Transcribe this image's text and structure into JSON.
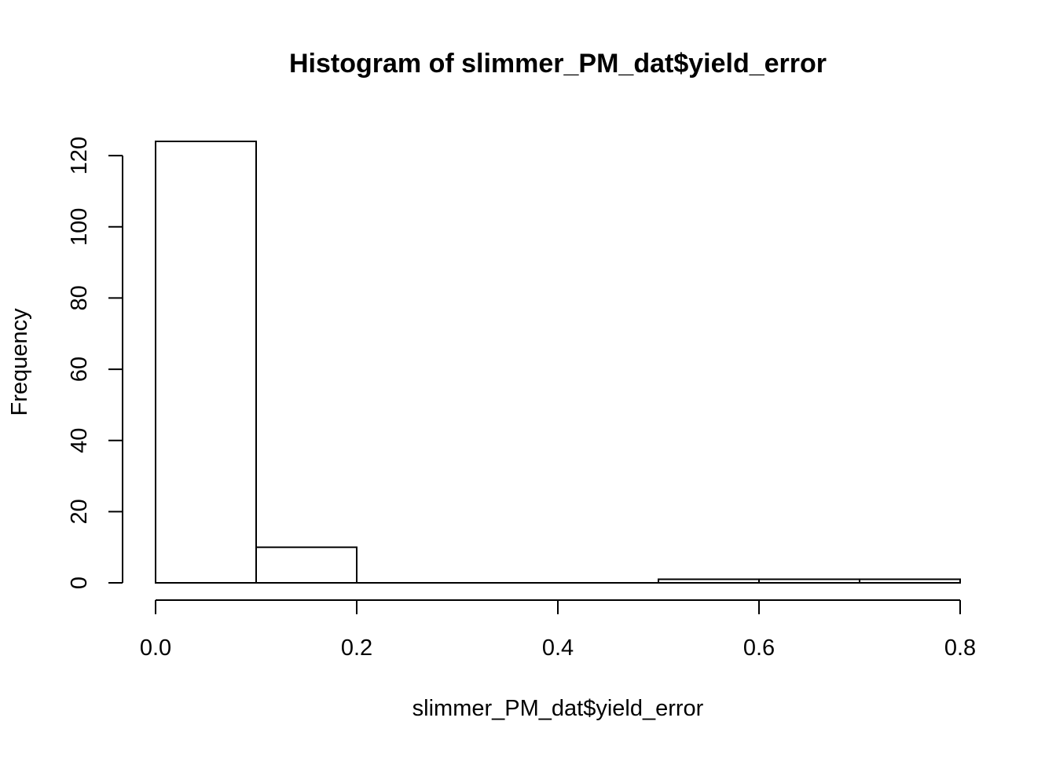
{
  "chart_data": {
    "type": "bar",
    "title": "Histogram of slimmer_PM_dat$yield_error",
    "xlabel": "slimmer_PM_dat$yield_error",
    "ylabel": "Frequency",
    "bins": [
      {
        "start": 0.0,
        "end": 0.1,
        "count": 124
      },
      {
        "start": 0.1,
        "end": 0.2,
        "count": 10
      },
      {
        "start": 0.2,
        "end": 0.3,
        "count": 0
      },
      {
        "start": 0.3,
        "end": 0.4,
        "count": 0
      },
      {
        "start": 0.4,
        "end": 0.5,
        "count": 0
      },
      {
        "start": 0.5,
        "end": 0.6,
        "count": 1
      },
      {
        "start": 0.6,
        "end": 0.7,
        "count": 1
      },
      {
        "start": 0.7,
        "end": 0.8,
        "count": 1
      }
    ],
    "xlim": [
      0.0,
      0.8
    ],
    "ylim": [
      0,
      124
    ],
    "x_ticks": [
      0.0,
      0.2,
      0.4,
      0.6,
      0.8
    ],
    "x_tick_labels": [
      "0.0",
      "0.2",
      "0.4",
      "0.6",
      "0.8"
    ],
    "y_ticks": [
      0,
      20,
      40,
      60,
      80,
      100,
      120
    ],
    "y_tick_labels": [
      "0",
      "20",
      "40",
      "60",
      "80",
      "100",
      "120"
    ],
    "grid": false,
    "legend": "none",
    "colors": {
      "bar_fill": "#ffffff",
      "bar_stroke": "#000000"
    }
  }
}
